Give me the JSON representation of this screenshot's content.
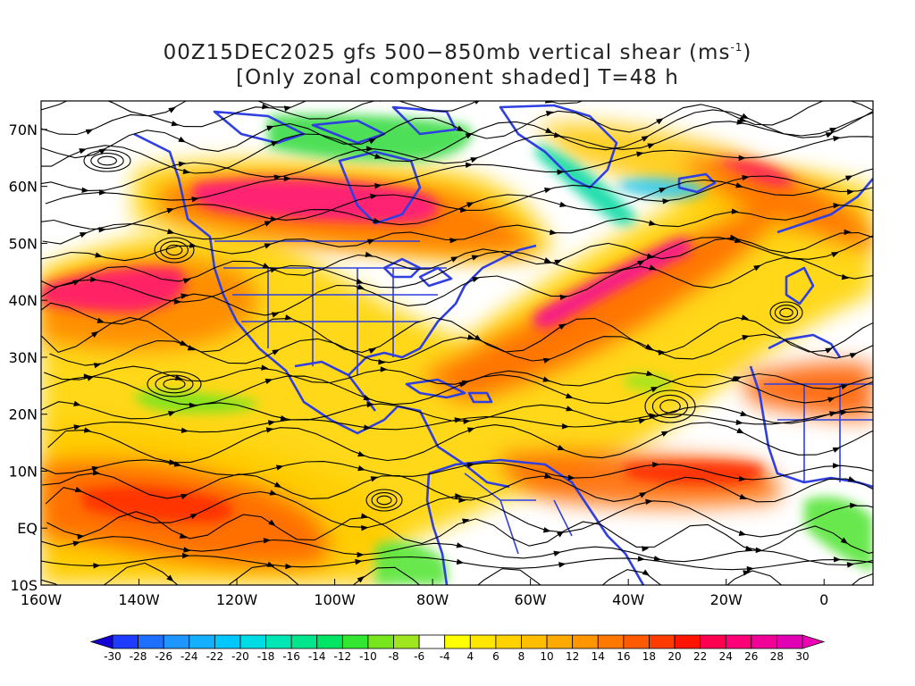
{
  "title": {
    "line1_prefix": "00Z15DEC2025 gfs 500−850mb vertical shear (ms",
    "line1_sup": "-1",
    "line1_suffix": ")",
    "line2": "[Only zonal component shaded] T=48 h"
  },
  "map": {
    "lon_range": [
      -160,
      10
    ],
    "lat_range": [
      -10,
      75
    ],
    "x_ticks": [
      {
        "value": -160,
        "label": "160W"
      },
      {
        "value": -140,
        "label": "140W"
      },
      {
        "value": -120,
        "label": "120W"
      },
      {
        "value": -100,
        "label": "100W"
      },
      {
        "value": -80,
        "label": "80W"
      },
      {
        "value": -60,
        "label": "60W"
      },
      {
        "value": -40,
        "label": "40W"
      },
      {
        "value": -20,
        "label": "20W"
      },
      {
        "value": 0,
        "label": "0"
      }
    ],
    "y_ticks": [
      {
        "value": -10,
        "label": "10S"
      },
      {
        "value": 0,
        "label": "EQ"
      },
      {
        "value": 10,
        "label": "10N"
      },
      {
        "value": 20,
        "label": "20N"
      },
      {
        "value": 30,
        "label": "30N"
      },
      {
        "value": 40,
        "label": "40N"
      },
      {
        "value": 50,
        "label": "50N"
      },
      {
        "value": 60,
        "label": "60N"
      },
      {
        "value": 70,
        "label": "70N"
      }
    ],
    "coast_color": "#2f3fe0",
    "streamline_color": "#000000"
  },
  "colorbar": {
    "labels": [
      "-30",
      "-28",
      "-26",
      "-24",
      "-22",
      "-20",
      "-18",
      "-16",
      "-14",
      "-12",
      "-10",
      "-8",
      "-6",
      "-4",
      "4",
      "6",
      "8",
      "10",
      "12",
      "14",
      "16",
      "18",
      "20",
      "22",
      "24",
      "26",
      "28",
      "30"
    ],
    "colors": [
      "#1400d2",
      "#1e3cff",
      "#1e6eff",
      "#1e96ff",
      "#14afff",
      "#00c8ff",
      "#00dce6",
      "#00e6b4",
      "#00e68c",
      "#00e664",
      "#32e632",
      "#78e61e",
      "#a0e61e",
      "#ffffff",
      "#ffff00",
      "#ffe600",
      "#ffd200",
      "#ffbe00",
      "#ffaa00",
      "#ff9600",
      "#ff7800",
      "#ff5a00",
      "#ff3c00",
      "#ff1400",
      "#ff0050",
      "#ff0078",
      "#f00096",
      "#e100b4",
      "#f000b4"
    ]
  }
}
